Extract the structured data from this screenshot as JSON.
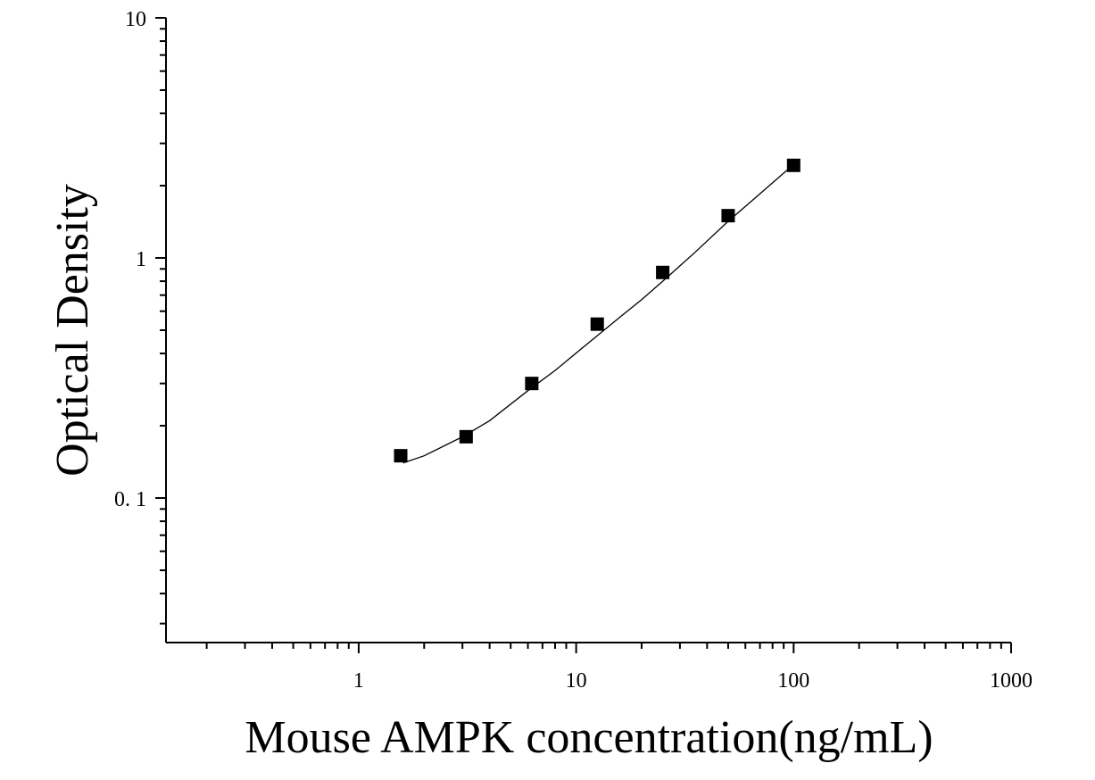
{
  "chart_data": {
    "type": "scatter",
    "title": "",
    "xlabel": "Mouse AMPK concentration(ng/mL)",
    "ylabel": "Optical Density",
    "x_scale": "log",
    "y_scale": "log",
    "xlim": [
      0.13,
      1000
    ],
    "ylim": [
      0.025,
      10
    ],
    "x_ticks": [
      {
        "value": 1,
        "label": "1"
      },
      {
        "value": 10,
        "label": "10"
      },
      {
        "value": 100,
        "label": "100"
      },
      {
        "value": 1000,
        "label": "1000"
      }
    ],
    "y_ticks": [
      {
        "value": 0.1,
        "label": "0. 1"
      },
      {
        "value": 1,
        "label": "1"
      },
      {
        "value": 10,
        "label": "10"
      }
    ],
    "grid": false,
    "legend": "none",
    "marker_color": "#000000",
    "series": [
      {
        "x": [
          1.56,
          3.12,
          6.25,
          12.5,
          25,
          50,
          100
        ],
        "y": [
          0.15,
          0.18,
          0.3,
          0.53,
          0.87,
          1.5,
          2.43
        ]
      }
    ],
    "fit_curve": {
      "x": [
        1.6,
        2,
        3,
        4,
        6,
        8,
        12,
        16,
        20,
        25,
        35,
        50,
        70,
        100
      ],
      "y": [
        0.14,
        0.15,
        0.18,
        0.21,
        0.28,
        0.34,
        0.46,
        0.57,
        0.67,
        0.8,
        1.05,
        1.42,
        1.85,
        2.45
      ]
    }
  }
}
